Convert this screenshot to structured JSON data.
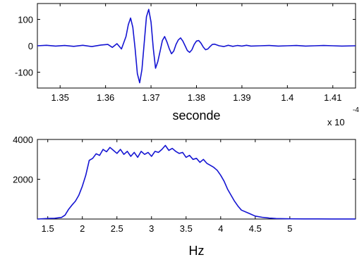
{
  "chart_data": [
    {
      "type": "line",
      "title": "",
      "xlabel": "seconde",
      "ylabel": "",
      "x_multiplier_label": "x 10",
      "x_multiplier_exponent": "-4",
      "xlim": [
        1.345,
        1.415
      ],
      "ylim": [
        -160,
        160
      ],
      "xticks": [
        1.35,
        1.36,
        1.37,
        1.38,
        1.39,
        1.4,
        1.41
      ],
      "xtick_labels": [
        "1.35",
        "1.36",
        "1.37",
        "1.38",
        "1.39",
        "1.4",
        "1.41"
      ],
      "yticks": [
        100,
        0,
        -100
      ],
      "ytick_labels": [
        "100",
        "0",
        "-100"
      ],
      "grid": false,
      "color": "#1414d2",
      "series": [
        {
          "x": [
            1.345,
            1.347,
            1.349,
            1.351,
            1.353,
            1.355,
            1.357,
            1.359,
            1.3605,
            1.3615,
            1.3625,
            1.3635,
            1.3645,
            1.365,
            1.3655,
            1.366,
            1.3665,
            1.367,
            1.3675,
            1.368,
            1.3685,
            1.369,
            1.3695,
            1.37,
            1.3705,
            1.371,
            1.3715,
            1.372,
            1.3725,
            1.373,
            1.3735,
            1.374,
            1.3745,
            1.375,
            1.3755,
            1.376,
            1.3765,
            1.377,
            1.3775,
            1.378,
            1.3785,
            1.379,
            1.3795,
            1.38,
            1.3805,
            1.381,
            1.3815,
            1.382,
            1.3825,
            1.383,
            1.3835,
            1.384,
            1.385,
            1.386,
            1.387,
            1.388,
            1.389,
            1.39,
            1.391,
            1.392,
            1.394,
            1.396,
            1.398,
            1.4,
            1.402,
            1.404,
            1.406,
            1.408,
            1.41,
            1.412,
            1.415
          ],
          "y": [
            0,
            2,
            -1,
            1,
            -2,
            2,
            -3,
            3,
            5,
            -6,
            8,
            -12,
            35,
            80,
            105,
            70,
            -10,
            -105,
            -140,
            -90,
            10,
            110,
            138,
            90,
            -10,
            -85,
            -60,
            -20,
            20,
            35,
            15,
            -10,
            -30,
            -20,
            5,
            22,
            30,
            18,
            0,
            -18,
            -25,
            -15,
            5,
            18,
            20,
            10,
            -5,
            -15,
            -12,
            -3,
            5,
            6,
            0,
            -3,
            2,
            -2,
            1,
            -1,
            2,
            -1,
            0,
            1,
            -1,
            0,
            1,
            -1,
            0,
            1,
            0,
            -1,
            0
          ]
        }
      ]
    },
    {
      "type": "line",
      "title": "",
      "xlabel": "Hz",
      "ylabel": "",
      "xlim": [
        1.35,
        5.95
      ],
      "ylim": [
        0,
        4000
      ],
      "xticks": [
        1.5,
        2,
        2.5,
        3,
        3.5,
        4,
        4.5,
        5
      ],
      "xtick_labels": [
        "1.5",
        "2",
        "2.5",
        "3",
        "3.5",
        "4",
        "4.5",
        "5"
      ],
      "yticks": [
        4000,
        2000
      ],
      "ytick_labels": [
        "4000",
        "2000"
      ],
      "grid": false,
      "color": "#1414d2",
      "series": [
        {
          "x": [
            1.35,
            1.5,
            1.6,
            1.7,
            1.75,
            1.8,
            1.85,
            1.9,
            1.95,
            2.0,
            2.05,
            2.1,
            2.15,
            2.2,
            2.25,
            2.3,
            2.35,
            2.4,
            2.45,
            2.5,
            2.55,
            2.6,
            2.65,
            2.7,
            2.75,
            2.8,
            2.85,
            2.9,
            2.95,
            3.0,
            3.05,
            3.1,
            3.15,
            3.2,
            3.25,
            3.3,
            3.35,
            3.4,
            3.45,
            3.5,
            3.55,
            3.6,
            3.65,
            3.7,
            3.75,
            3.8,
            3.85,
            3.9,
            3.95,
            4.0,
            4.05,
            4.1,
            4.15,
            4.2,
            4.25,
            4.3,
            4.4,
            4.5,
            4.6,
            4.7,
            4.8,
            5.0,
            5.2,
            5.4,
            5.6,
            5.8,
            5.95
          ],
          "y": [
            0,
            30,
            40,
            80,
            200,
            480,
            700,
            900,
            1200,
            1650,
            2200,
            2950,
            3050,
            3280,
            3200,
            3500,
            3380,
            3600,
            3450,
            3300,
            3500,
            3250,
            3400,
            3150,
            3350,
            3100,
            3400,
            3250,
            3350,
            3150,
            3400,
            3350,
            3500,
            3700,
            3450,
            3550,
            3400,
            3300,
            3350,
            3100,
            3200,
            3000,
            3050,
            2850,
            3000,
            2800,
            2700,
            2600,
            2450,
            2200,
            1900,
            1500,
            1200,
            900,
            650,
            450,
            300,
            150,
            90,
            50,
            25,
            12,
            8,
            6,
            5,
            4,
            3
          ]
        }
      ]
    }
  ]
}
